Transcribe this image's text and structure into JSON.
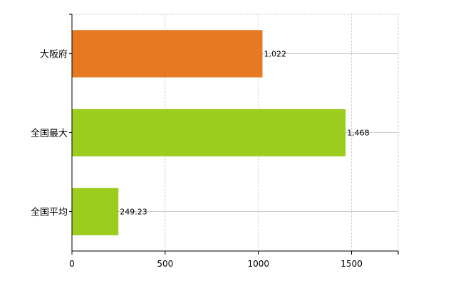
{
  "chart_data": {
    "type": "bar",
    "orientation": "horizontal",
    "categories": [
      "大阪府",
      "全国最大",
      "全国平均"
    ],
    "values": [
      1022,
      1468,
      249.23
    ],
    "value_labels": [
      "1,022",
      "1,468",
      "249.23"
    ],
    "bar_colors": [
      "#e57a22",
      "#9acd1d",
      "#9acd1d"
    ],
    "title": "",
    "xlabel": "",
    "ylabel": "",
    "xlim": [
      0,
      1750
    ],
    "x_ticks": [
      0,
      500,
      1000,
      1500
    ],
    "x_tick_labels": [
      "0",
      "500",
      "1000",
      "1500"
    ],
    "grid": true,
    "grid_color": "#c8c8c8",
    "legend": "none"
  }
}
